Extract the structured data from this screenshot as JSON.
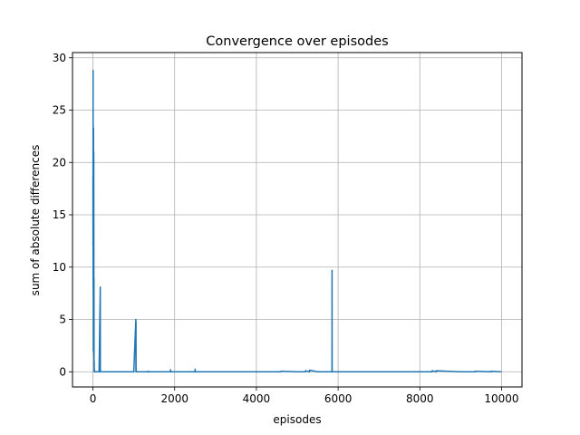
{
  "chart_data": {
    "type": "line",
    "title": "Convergence over episodes",
    "xlabel": "episodes",
    "ylabel": "sum of absolute differences",
    "xlim": [
      -500,
      10500
    ],
    "ylim": [
      -1.45,
      30.5
    ],
    "xticks": [
      0,
      2000,
      4000,
      6000,
      8000,
      10000
    ],
    "yticks": [
      0,
      5,
      10,
      15,
      20,
      25,
      30
    ],
    "grid": true,
    "line_color": "#1f77b4",
    "series": [
      {
        "x": [
          0,
          2,
          4,
          6,
          8,
          10,
          12,
          14,
          16,
          18,
          20,
          22,
          24,
          26,
          28,
          30,
          32,
          34,
          36,
          38,
          40,
          42,
          44,
          46,
          48,
          50,
          55,
          60,
          70,
          80,
          100,
          150,
          180,
          182,
          184,
          190,
          200,
          400,
          600,
          800,
          1000,
          1050,
          1052,
          1054,
          1056,
          1060,
          1070,
          1350,
          1352,
          1354,
          1900,
          1902,
          1904,
          1906,
          2500,
          2502,
          2504,
          2506,
          3000,
          4000,
          4600,
          4602,
          5000,
          5200,
          5202,
          5300,
          5302,
          5500,
          5850,
          5852,
          5854,
          5856,
          5860,
          5870,
          6000,
          7000,
          8000,
          8300,
          8302,
          8400,
          8402,
          9000,
          9350,
          9352,
          9750,
          9752,
          10000
        ],
        "y": [
          18.7,
          12.0,
          28.8,
          8.0,
          22.0,
          2.0,
          16.5,
          23.3,
          7.5,
          3.0,
          21.0,
          14.0,
          1.5,
          9.0,
          0.8,
          0.0,
          1.0,
          0.0,
          0.3,
          0.0,
          0.0,
          0.0,
          0.0,
          0.0,
          0.0,
          0.0,
          0.0,
          0.0,
          0.0,
          0.0,
          0.0,
          0.0,
          8.1,
          0.0,
          0.0,
          0.0,
          0.0,
          0.0,
          0.0,
          0.0,
          0.0,
          5.0,
          0.0,
          4.8,
          0.0,
          0.0,
          0.0,
          0.0,
          0.05,
          0.0,
          0.0,
          0.2,
          0.0,
          0.0,
          0.0,
          0.25,
          0.0,
          0.0,
          0.0,
          0.0,
          0.0,
          0.05,
          0.0,
          0.0,
          0.1,
          0.0,
          0.15,
          0.0,
          0.0,
          9.7,
          0.0,
          0.0,
          0.0,
          0.0,
          0.0,
          0.0,
          0.0,
          0.0,
          0.1,
          0.0,
          0.1,
          0.0,
          0.0,
          0.05,
          0.0,
          0.05,
          0.0
        ]
      }
    ]
  }
}
